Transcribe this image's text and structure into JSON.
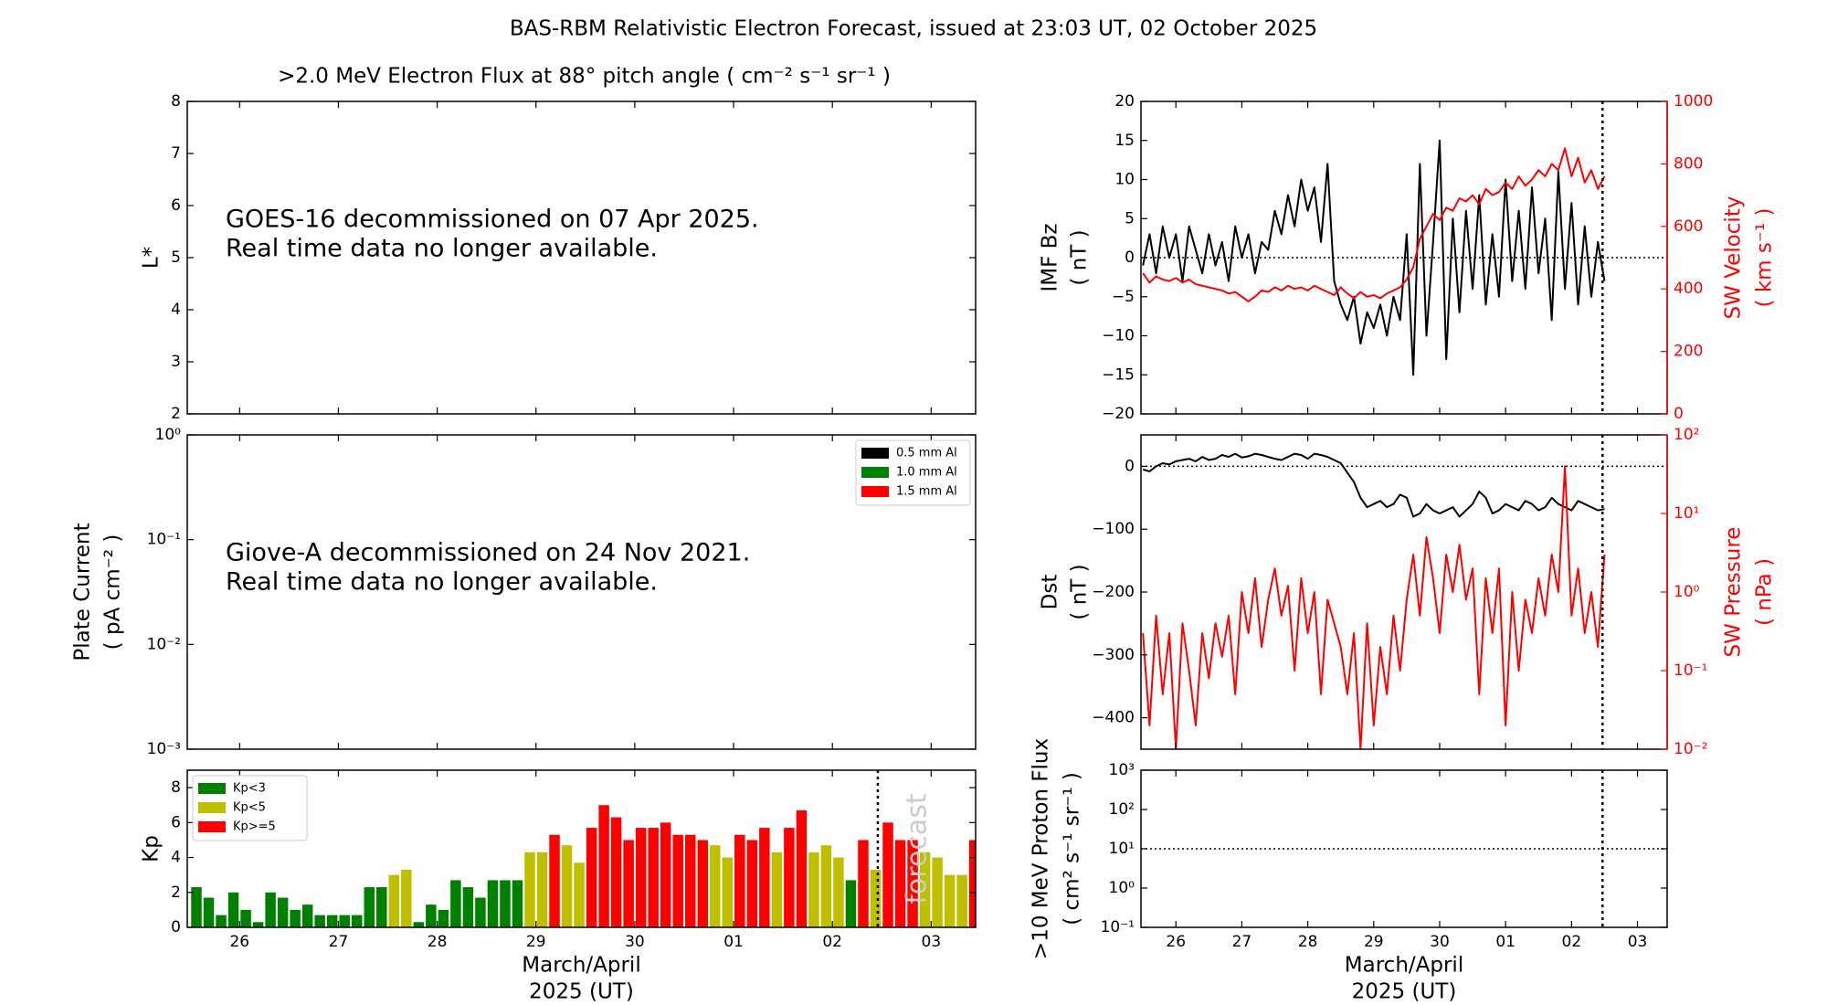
{
  "title": "BAS-RBM Relativistic Electron Forecast, issued at 23:03 UT, 02 October 2025",
  "chart_data": [
    {
      "type": "heatmap",
      "title": ">2.0 MeV Electron Flux at 88° pitch angle ( cm⁻² s⁻¹ sr⁻¹ )",
      "ylabel": [
        "L*"
      ],
      "xlim": [
        25.47,
        33.45
      ],
      "xticks": [
        26,
        27,
        28,
        29,
        30,
        31,
        32,
        33
      ],
      "ylim": [
        2,
        8
      ],
      "yticks": [
        2,
        3,
        4,
        5,
        6,
        7,
        8
      ],
      "annotation": [
        "GOES-16 decommissioned on 07 Apr 2025.",
        "Real time data no longer available."
      ]
    },
    {
      "type": "line",
      "ylabel": [
        "Plate Current",
        "( pA cm⁻² )"
      ],
      "xlim": [
        25.47,
        33.45
      ],
      "xticks": [
        26,
        27,
        28,
        29,
        30,
        31,
        32,
        33
      ],
      "ylim": [
        0.001,
        1
      ],
      "ylog": true,
      "yticks": [
        {
          "value": 0.001,
          "label": "10⁻³"
        },
        {
          "value": 0.01,
          "label": "10⁻²"
        },
        {
          "value": 0.1,
          "label": "10⁻¹"
        },
        {
          "value": 1,
          "label": "10⁰"
        }
      ],
      "legend": [
        {
          "name": "0.5 mm Al",
          "color": "#000000"
        },
        {
          "name": "1.0 mm Al",
          "color": "#008000"
        },
        {
          "name": "1.5 mm Al",
          "color": "#ff0000"
        }
      ],
      "legend_loc": "upper right",
      "annotation": [
        "Giove-A decommissioned on 24 Nov 2021.",
        "Real time data no longer available."
      ]
    },
    {
      "type": "bar",
      "ylabel": [
        "Kp"
      ],
      "xlabel": [
        "March/April",
        "2025 (UT)"
      ],
      "xlim": [
        25.47,
        33.45
      ],
      "xticks": [
        26,
        27,
        28,
        29,
        30,
        {
          "value": 31,
          "label": "01"
        },
        {
          "value": 32,
          "label": "02"
        },
        {
          "value": 33,
          "label": "03"
        }
      ],
      "ylim": [
        0,
        9
      ],
      "yticks": [
        0,
        2,
        4,
        6,
        8
      ],
      "x": [
        25.5625,
        25.6875,
        25.8125,
        25.9375,
        26.0625,
        26.1875,
        26.3125,
        26.4375,
        26.5625,
        26.6875,
        26.8125,
        26.9375,
        27.0625,
        27.1875,
        27.3125,
        27.4375,
        27.5625,
        27.6875,
        27.8125,
        27.9375,
        28.0625,
        28.1875,
        28.3125,
        28.4375,
        28.5625,
        28.6875,
        28.8125,
        28.9375,
        29.0625,
        29.1875,
        29.3125,
        29.4375,
        29.5625,
        29.6875,
        29.8125,
        29.9375,
        30.0625,
        30.1875,
        30.3125,
        30.4375,
        30.5625,
        30.6875,
        30.8125,
        30.9375,
        31.0625,
        31.1875,
        31.3125,
        31.4375,
        31.5625,
        31.6875,
        31.8125,
        31.9375,
        32.0625,
        32.1875,
        32.3125,
        32.4375,
        32.5625,
        32.6875,
        32.8125,
        32.9375,
        33.0625,
        33.1875,
        33.3125,
        33.4375
      ],
      "values": [
        2.3,
        1.7,
        0.7,
        2.0,
        1.0,
        0.3,
        2.0,
        1.7,
        1.0,
        1.3,
        0.7,
        0.7,
        0.7,
        0.7,
        2.3,
        2.3,
        3.0,
        3.3,
        0.3,
        1.3,
        1.0,
        2.7,
        2.3,
        1.7,
        2.7,
        2.7,
        2.7,
        4.3,
        4.3,
        5.3,
        4.7,
        3.7,
        5.7,
        7.0,
        6.3,
        5.0,
        5.7,
        5.7,
        6.0,
        5.3,
        5.3,
        5.0,
        4.7,
        4.0,
        5.3,
        5.0,
        5.7,
        4.3,
        5.7,
        6.7,
        4.3,
        4.7,
        4.0,
        2.7,
        5.0,
        3.3,
        6.0,
        5.0,
        5.0,
        4.3,
        4.0,
        3.0,
        3.0,
        5.0
      ],
      "colors": [
        "#008000",
        "#008000",
        "#008000",
        "#008000",
        "#008000",
        "#008000",
        "#008000",
        "#008000",
        "#008000",
        "#008000",
        "#008000",
        "#008000",
        "#008000",
        "#008000",
        "#008000",
        "#008000",
        "#bfbf00",
        "#bfbf00",
        "#008000",
        "#008000",
        "#008000",
        "#008000",
        "#008000",
        "#008000",
        "#008000",
        "#008000",
        "#008000",
        "#bfbf00",
        "#bfbf00",
        "#ff0000",
        "#bfbf00",
        "#bfbf00",
        "#ff0000",
        "#ff0000",
        "#ff0000",
        "#ff0000",
        "#ff0000",
        "#ff0000",
        "#ff0000",
        "#ff0000",
        "#ff0000",
        "#ff0000",
        "#bfbf00",
        "#bfbf00",
        "#ff0000",
        "#ff0000",
        "#ff0000",
        "#bfbf00",
        "#ff0000",
        "#ff0000",
        "#bfbf00",
        "#bfbf00",
        "#bfbf00",
        "#008000",
        "#ff0000",
        "#bfbf00",
        "#ff0000",
        "#ff0000",
        "#ff0000",
        "#bfbf00",
        "#bfbf00",
        "#bfbf00",
        "#bfbf00",
        "#ff0000"
      ],
      "legend": [
        {
          "name": "Kp<3",
          "color": "#008000"
        },
        {
          "name": "Kp<5",
          "color": "#bfbf00"
        },
        {
          "name": "Kp>=5",
          "color": "#ff0000"
        }
      ],
      "legend_loc": "upper left",
      "vline": 32.46,
      "forecast_label": "forecast"
    },
    {
      "type": "line",
      "ylabel": [
        "IMF Bz",
        "( nT )"
      ],
      "y2label": [
        "SW Velocity",
        "( km s⁻¹ )"
      ],
      "y2_color": "#ff0000",
      "xlim": [
        25.47,
        33.45
      ],
      "xticks": [
        26,
        27,
        28,
        29,
        30,
        31,
        32,
        33
      ],
      "ylim": [
        -20,
        20
      ],
      "yticks": [
        {
          "value": -20,
          "label": "−20"
        },
        {
          "value": -15,
          "label": "−15"
        },
        {
          "value": -10,
          "label": "−10"
        },
        {
          "value": -5,
          "label": "−5"
        },
        0,
        5,
        10,
        15,
        20
      ],
      "y2lim": [
        0,
        1000
      ],
      "y2ticks": [
        0,
        200,
        400,
        600,
        800,
        1000
      ],
      "hline": 0,
      "vline": 32.47,
      "x": [
        25.5,
        25.6,
        25.7,
        25.8,
        25.9,
        26,
        26.1,
        26.2,
        26.3,
        26.4,
        26.5,
        26.6,
        26.7,
        26.8,
        26.9,
        27,
        27.1,
        27.2,
        27.3,
        27.4,
        27.5,
        27.6,
        27.7,
        27.8,
        27.9,
        28,
        28.1,
        28.2,
        28.3,
        28.4,
        28.5,
        28.6,
        28.7,
        28.8,
        28.9,
        29,
        29.1,
        29.2,
        29.3,
        29.4,
        29.5,
        29.6,
        29.7,
        29.8,
        29.9,
        30,
        30.1,
        30.2,
        30.3,
        30.4,
        30.5,
        30.6,
        30.7,
        30.8,
        30.9,
        31,
        31.1,
        31.2,
        31.3,
        31.4,
        31.5,
        31.6,
        31.7,
        31.8,
        31.9,
        32,
        32.1,
        32.2,
        32.3,
        32.4,
        32.5
      ],
      "series": [
        {
          "name": "IMF Bz",
          "color": "#000000",
          "values": [
            -1,
            3,
            -2,
            4,
            0,
            3,
            -3,
            4,
            1,
            -2,
            3,
            -1,
            2,
            -3,
            4,
            0,
            3,
            -2,
            2,
            1,
            6,
            3,
            8,
            4,
            10,
            6,
            9,
            2,
            12,
            -3,
            -6,
            -8,
            -5,
            -11,
            -7,
            -9,
            -6,
            -10,
            -5,
            -8,
            3,
            -15,
            12,
            -10,
            2,
            15,
            -13,
            5,
            -7,
            6,
            -4,
            8,
            -6,
            3,
            -5,
            10,
            -3,
            6,
            -4,
            9,
            -2,
            5,
            -8,
            11,
            -4,
            7,
            -6,
            4,
            -5,
            2,
            -3
          ]
        },
        {
          "name": "SW Velocity",
          "color": "#ff0000",
          "axis": "y2",
          "values": [
            450,
            420,
            440,
            430,
            425,
            435,
            420,
            430,
            415,
            410,
            405,
            400,
            395,
            385,
            390,
            375,
            360,
            375,
            395,
            390,
            405,
            395,
            410,
            400,
            405,
            395,
            410,
            400,
            390,
            380,
            405,
            385,
            370,
            390,
            375,
            380,
            370,
            385,
            395,
            405,
            430,
            470,
            560,
            600,
            640,
            620,
            660,
            650,
            690,
            680,
            700,
            670,
            720,
            700,
            710,
            740,
            720,
            760,
            730,
            750,
            780,
            760,
            800,
            780,
            850,
            760,
            820,
            740,
            780,
            720,
            760
          ]
        }
      ]
    },
    {
      "type": "line",
      "ylabel": [
        "Dst",
        "( nT )"
      ],
      "y2label": [
        "SW Pressure",
        "( nPa )"
      ],
      "y2_color": "#ff0000",
      "xlim": [
        25.47,
        33.45
      ],
      "xticks": [
        26,
        27,
        28,
        29,
        30,
        31,
        32,
        33
      ],
      "ylim": [
        -450,
        50
      ],
      "yticks": [
        {
          "value": -400,
          "label": "−400"
        },
        {
          "value": -300,
          "label": "−300"
        },
        {
          "value": -200,
          "label": "−200"
        },
        {
          "value": -100,
          "label": "−100"
        },
        0
      ],
      "y2lim": [
        0.01,
        100
      ],
      "y2log": true,
      "y2ticks": [
        {
          "value": 0.01,
          "label": "10⁻²"
        },
        {
          "value": 0.1,
          "label": "10⁻¹"
        },
        {
          "value": 1,
          "label": "10⁰"
        },
        {
          "value": 10,
          "label": "10¹"
        },
        {
          "value": 100,
          "label": "10²"
        }
      ],
      "hline": 0,
      "vline": 32.47,
      "x": [
        25.5,
        25.6,
        25.7,
        25.8,
        25.9,
        26,
        26.1,
        26.2,
        26.3,
        26.4,
        26.5,
        26.6,
        26.7,
        26.8,
        26.9,
        27,
        27.1,
        27.2,
        27.3,
        27.4,
        27.5,
        27.6,
        27.7,
        27.8,
        27.9,
        28,
        28.1,
        28.2,
        28.3,
        28.4,
        28.5,
        28.6,
        28.7,
        28.8,
        28.9,
        29,
        29.1,
        29.2,
        29.3,
        29.4,
        29.5,
        29.6,
        29.7,
        29.8,
        29.9,
        30,
        30.1,
        30.2,
        30.3,
        30.4,
        30.5,
        30.6,
        30.7,
        30.8,
        30.9,
        31,
        31.1,
        31.2,
        31.3,
        31.4,
        31.5,
        31.6,
        31.7,
        31.8,
        31.9,
        32,
        32.1,
        32.2,
        32.3,
        32.4,
        32.5
      ],
      "series": [
        {
          "name": "Dst",
          "color": "#000000",
          "values": [
            -5,
            -8,
            0,
            5,
            3,
            8,
            10,
            12,
            8,
            15,
            10,
            12,
            18,
            15,
            20,
            14,
            16,
            20,
            18,
            15,
            12,
            10,
            15,
            20,
            18,
            12,
            20,
            18,
            15,
            10,
            5,
            -10,
            -25,
            -50,
            -65,
            -60,
            -55,
            -65,
            -60,
            -45,
            -50,
            -80,
            -75,
            -60,
            -70,
            -75,
            -70,
            -65,
            -80,
            -70,
            -60,
            -40,
            -50,
            -75,
            -70,
            -60,
            -65,
            -70,
            -55,
            -60,
            -70,
            -65,
            -50,
            -60,
            -65,
            -70,
            -55,
            -60,
            -65,
            -70,
            -68
          ]
        },
        {
          "name": "SW Pressure",
          "color": "#ff0000",
          "axis": "y2",
          "values": [
            0.3,
            0.02,
            0.5,
            0.05,
            0.3,
            0.01,
            0.4,
            0.1,
            0.02,
            0.3,
            0.08,
            0.4,
            0.15,
            0.5,
            0.05,
            1,
            0.3,
            1.5,
            0.2,
            0.8,
            2,
            0.5,
            1.2,
            0.1,
            1.5,
            0.3,
            1,
            0.05,
            0.8,
            0.4,
            0.2,
            0.05,
            0.3,
            0.01,
            0.4,
            0.02,
            0.2,
            0.05,
            0.5,
            0.1,
            0.8,
            3,
            0.5,
            5,
            1.5,
            0.3,
            3,
            1,
            4,
            0.8,
            2,
            0.05,
            1.5,
            0.3,
            2,
            0.02,
            1,
            0.1,
            0.8,
            0.3,
            1.5,
            0.5,
            3,
            1,
            40,
            0.5,
            2,
            0.3,
            1,
            0.2,
            3
          ]
        }
      ]
    },
    {
      "type": "line",
      "ylabel": [
        ">10 MeV Proton Flux",
        "( cm² s⁻¹ sr⁻¹ )"
      ],
      "xlabel": [
        "March/April",
        "2025 (UT)"
      ],
      "xlim": [
        25.47,
        33.45
      ],
      "xticks": [
        26,
        27,
        28,
        29,
        30,
        {
          "value": 31,
          "label": "01"
        },
        {
          "value": 32,
          "label": "02"
        },
        {
          "value": 33,
          "label": "03"
        }
      ],
      "ylim": [
        0.1,
        1000
      ],
      "ylog": true,
      "yticks": [
        {
          "value": 0.1,
          "label": "10⁻¹"
        },
        {
          "value": 1,
          "label": "10⁰"
        },
        {
          "value": 10,
          "label": "10¹"
        },
        {
          "value": 100,
          "label": "10²"
        },
        {
          "value": 1000,
          "label": "10³"
        }
      ],
      "hline": 10,
      "vline": 32.47
    }
  ]
}
